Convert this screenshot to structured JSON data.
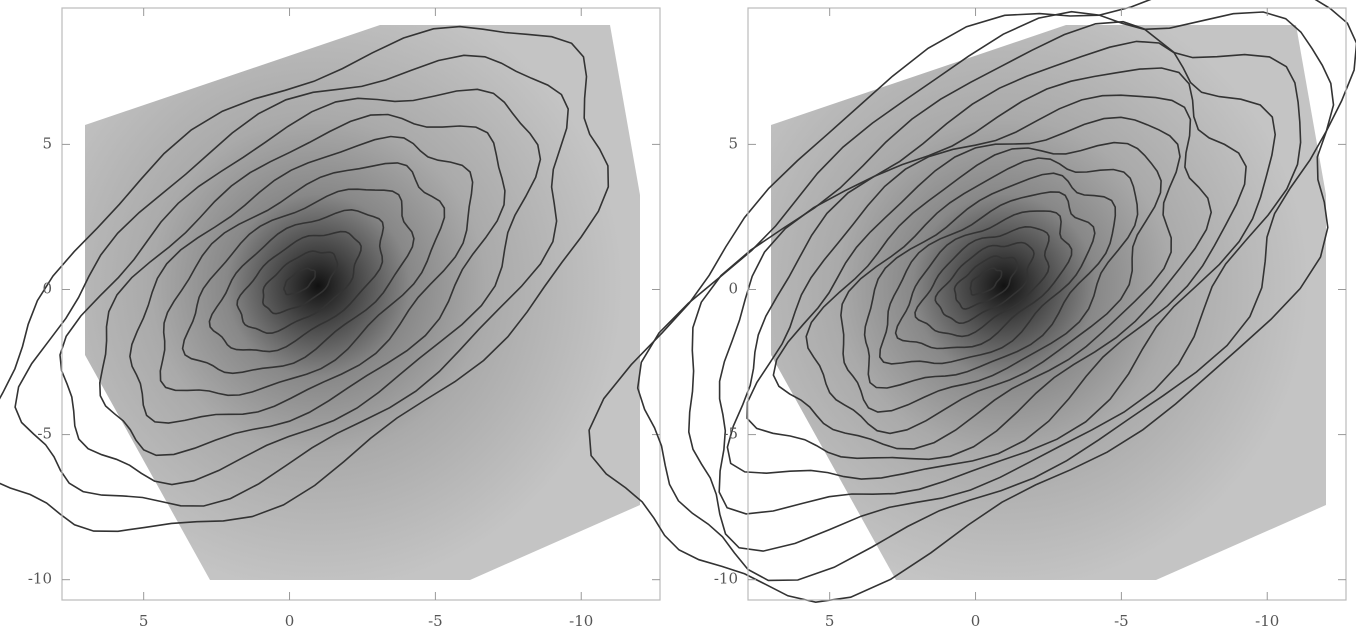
{
  "chart_data": [
    {
      "type": "contour",
      "xlim": [
        7.8,
        -12.7
      ],
      "ylim": [
        -10.7,
        9.7
      ],
      "xticks": [
        5,
        0,
        -5,
        -10
      ],
      "yticks": [
        5,
        0,
        -5,
        -10
      ]
    },
    {
      "type": "contour",
      "xlim": [
        7.8,
        -12.7
      ],
      "ylim": [
        -10.7,
        9.7
      ],
      "xticks": [
        5,
        0,
        -5,
        -10
      ],
      "yticks": [
        5,
        0,
        -5,
        -10
      ]
    }
  ]
}
